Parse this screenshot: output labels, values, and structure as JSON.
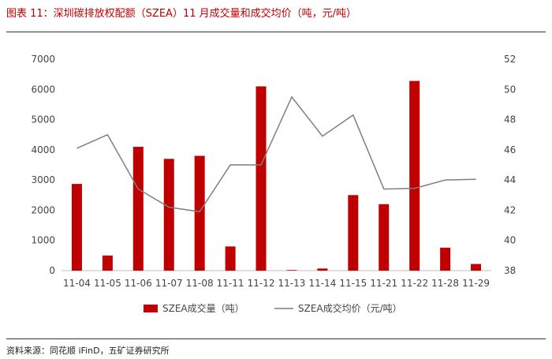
{
  "header": {
    "title": "图表 11：深圳碳排放权配额（SZEA）11 月成交量和成交均价（吨，元/吨）"
  },
  "footer": {
    "source": "资料来源：同花顺 iFinD，五矿证券研究所"
  },
  "colors": {
    "bar": "#c00000",
    "line": "#7f7f7f",
    "title": "#c00000"
  },
  "chart_data": {
    "type": "bar",
    "categories": [
      "11-04",
      "11-05",
      "11-06",
      "11-07",
      "11-08",
      "11-11",
      "11-12",
      "11-13",
      "11-14",
      "11-15",
      "11-21",
      "11-22",
      "11-28",
      "11-29"
    ],
    "series": [
      {
        "name": "SZEA成交量（吨）",
        "type": "bar",
        "axis": "left",
        "values": [
          2870,
          500,
          4100,
          3700,
          3800,
          800,
          6100,
          20,
          70,
          2500,
          2200,
          6280,
          760,
          220
        ]
      },
      {
        "name": "SZEA成交均价（元/吨）",
        "type": "line",
        "axis": "right",
        "values": [
          46.1,
          47.0,
          43.4,
          42.2,
          41.9,
          45.0,
          45.0,
          49.5,
          46.9,
          48.3,
          43.4,
          43.45,
          44.0,
          44.05
        ]
      }
    ],
    "y_left": {
      "lim": [
        0,
        7000
      ],
      "ticks": [
        0,
        1000,
        2000,
        3000,
        4000,
        5000,
        6000,
        7000
      ]
    },
    "y_right": {
      "lim": [
        38,
        52
      ],
      "ticks": [
        38,
        40,
        42,
        44,
        46,
        48,
        50,
        52
      ]
    },
    "legend": "bottom-center",
    "grid": false
  }
}
